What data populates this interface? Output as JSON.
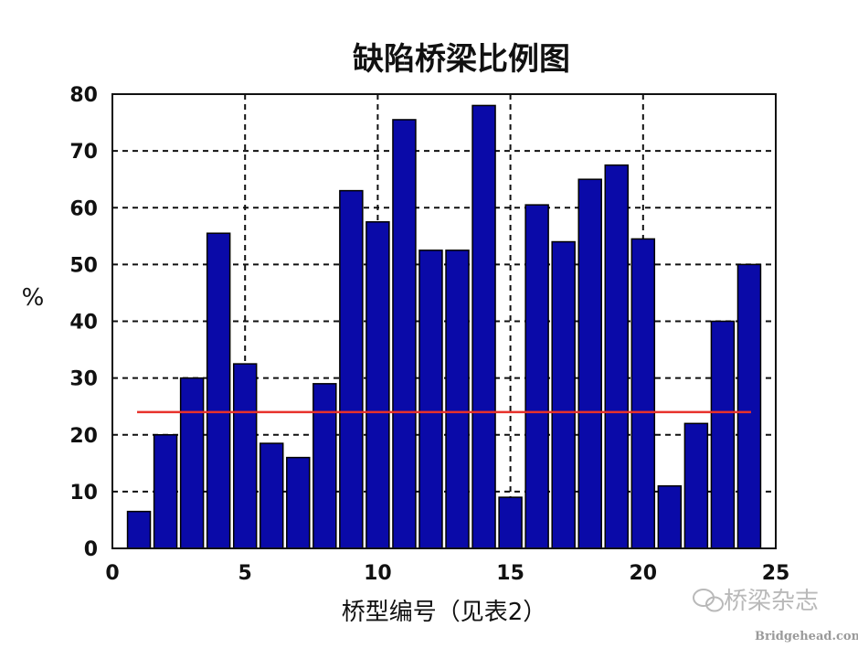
{
  "chart_data": {
    "type": "bar",
    "title": "缺陷桥梁比例图",
    "xlabel": "桥型编号（见表2）",
    "ylabel": "%",
    "xlim": [
      0,
      25
    ],
    "ylim": [
      0,
      80
    ],
    "xticks": [
      0,
      5,
      10,
      15,
      20,
      25
    ],
    "yticks": [
      0,
      10,
      20,
      30,
      40,
      50,
      60,
      70,
      80
    ],
    "grid": true,
    "grid_style": "dashed",
    "bar_color": "#0a0aa8",
    "reference_line": {
      "y": 24,
      "x_start": 1,
      "x_end": 24,
      "color": "#e8322b"
    },
    "x": [
      1,
      2,
      3,
      4,
      5,
      6,
      7,
      8,
      9,
      10,
      11,
      12,
      13,
      14,
      15,
      16,
      17,
      18,
      19,
      20,
      21,
      22,
      23,
      24
    ],
    "values": [
      6.5,
      20,
      30,
      55.5,
      32.5,
      18.5,
      16,
      29,
      63,
      57.5,
      75.5,
      52.5,
      52.5,
      78,
      9,
      60.5,
      54,
      65,
      67.5,
      54.5,
      11,
      22,
      40,
      50
    ]
  },
  "watermark": {
    "text": "桥梁杂志",
    "url": "Bridgehead.com.cn"
  }
}
